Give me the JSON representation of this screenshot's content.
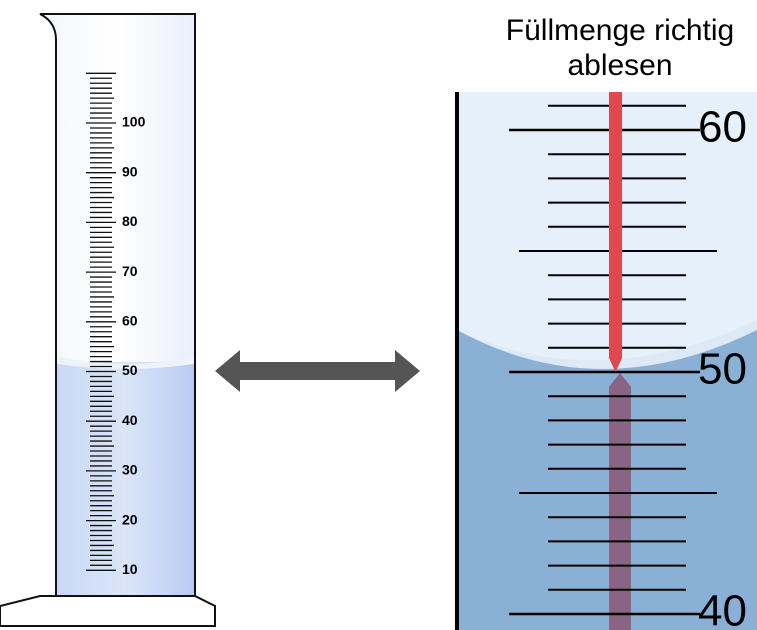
{
  "title": {
    "lines": [
      "Füllmenge richtig",
      "ablesen"
    ]
  },
  "cylinder": {
    "labels": [
      "100",
      "90",
      "80",
      "70",
      "60",
      "50",
      "40",
      "30",
      "20",
      "10"
    ]
  },
  "zoom": {
    "labels": [
      "60",
      "50",
      "40"
    ]
  }
}
